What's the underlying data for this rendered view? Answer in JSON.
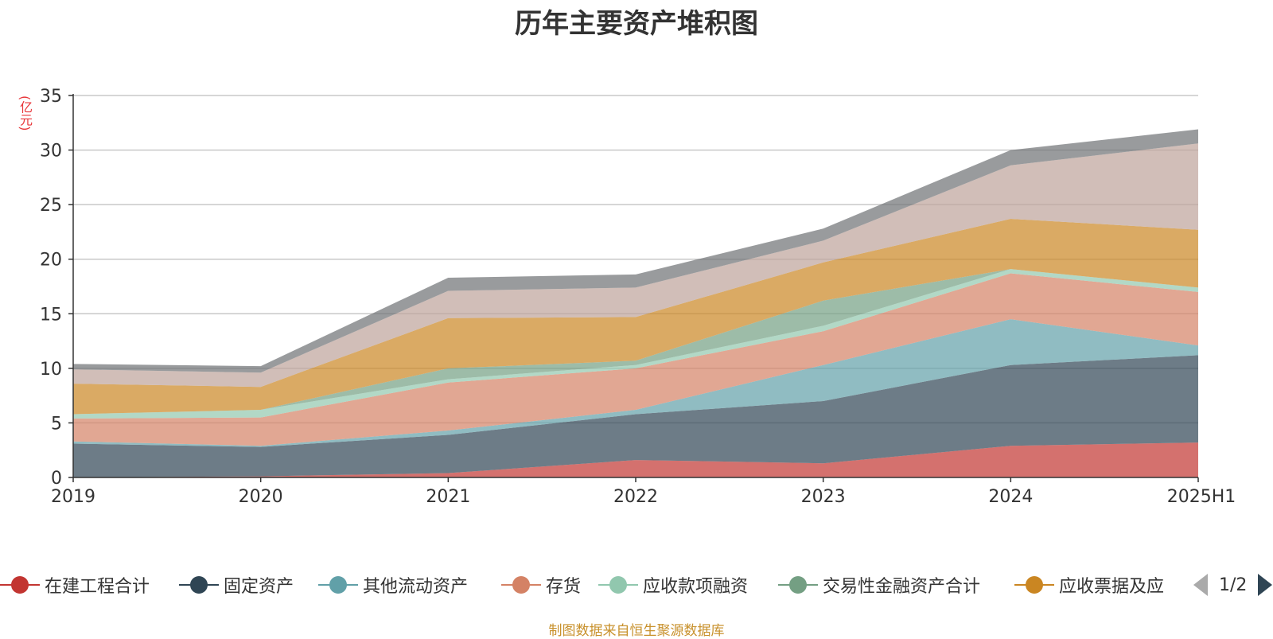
{
  "chart_data": {
    "type": "area",
    "stacked": true,
    "title": "历年主要资产堆积图",
    "unit": "(亿元)",
    "x": [
      "2019",
      "2020",
      "2021",
      "2022",
      "2023",
      "2024",
      "2025H1"
    ],
    "ylim": [
      0,
      35
    ],
    "yticks": [
      0,
      5,
      10,
      15,
      20,
      25,
      30,
      35
    ],
    "grid": true,
    "series": [
      {
        "name": "在建工程合计",
        "color": "#c23531",
        "values": [
          0.0,
          0.1,
          0.4,
          1.6,
          1.3,
          2.9,
          3.2
        ]
      },
      {
        "name": "固定资产",
        "color": "#2f4554",
        "values": [
          3.1,
          2.7,
          3.5,
          4.2,
          5.7,
          7.4,
          8.0
        ]
      },
      {
        "name": "其他流动资产",
        "color": "#61a0a8",
        "values": [
          0.2,
          0.1,
          0.4,
          0.4,
          3.3,
          4.2,
          0.9
        ]
      },
      {
        "name": "存货",
        "color": "#d48265",
        "values": [
          2.1,
          2.6,
          4.4,
          3.8,
          3.1,
          4.2,
          4.9
        ]
      },
      {
        "name": "应收款项融资",
        "color": "#91c7ae",
        "values": [
          0.4,
          0.7,
          0.3,
          0.3,
          0.5,
          0.4,
          0.4
        ]
      },
      {
        "name": "交易性金融资产合计",
        "color": "#749f83",
        "values": [
          0.0,
          0.0,
          1.0,
          0.4,
          2.3,
          0.0,
          0.0
        ]
      },
      {
        "name": "应收票据及应",
        "color": "#ca8622",
        "values": [
          2.8,
          2.1,
          4.6,
          4.0,
          3.5,
          4.6,
          5.3
        ]
      },
      {
        "name": "",
        "color": "#bda29a",
        "values": [
          1.3,
          1.3,
          2.5,
          2.7,
          2.0,
          4.9,
          7.9
        ]
      },
      {
        "name": "",
        "color": "#6e7074",
        "values": [
          0.5,
          0.6,
          1.2,
          1.2,
          1.1,
          1.4,
          1.3
        ]
      }
    ],
    "legend_position": "bottom",
    "legend_page": "1/2"
  },
  "source_text": "制图数据来自恒生聚源数据库"
}
